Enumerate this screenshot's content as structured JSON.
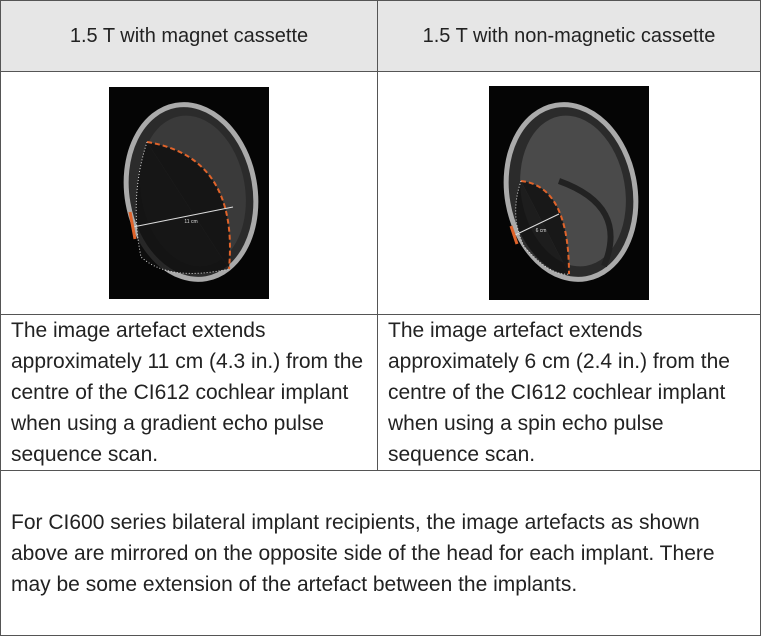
{
  "table": {
    "header": [
      "1.5 T with magnet cassette",
      "1.5 T with non-magnetic cassette"
    ],
    "image_labels": [
      "11 cm",
      "6 cm"
    ],
    "descriptions": [
      "The image artefact extends approximately 11 cm (4.3 in.) from the centre of the CI612 cochlear implant when using a gradient echo pulse sequence scan.",
      "The image artefact extends approximately 6 cm (2.4 in.) from the centre of the CI612 cochlear implant when using a spin echo pulse sequence scan."
    ],
    "footer": "For CI600 series bilateral implant recipients, the image artefacts as shown above are mirrored on the opposite side of the head for each implant. There may be some extension of the artefact between the implants."
  }
}
